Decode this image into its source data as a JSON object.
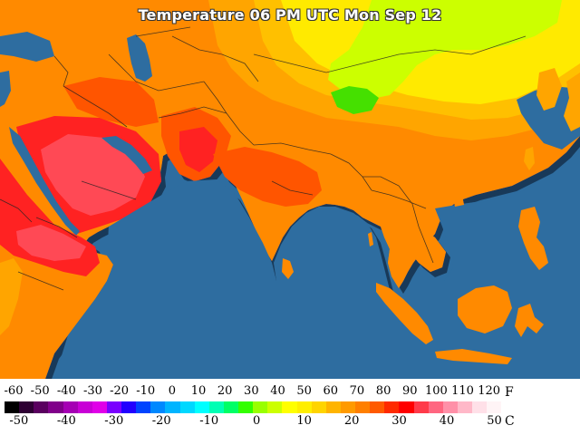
{
  "title": "Temperature 06 PM UTC Mon Sep 12",
  "legend": {
    "f_unit": "F",
    "c_unit": "C",
    "f_ticks": [
      "-60",
      "-50",
      "-40",
      "-30",
      "-20",
      "-10",
      "0",
      "10",
      "20",
      "30",
      "40",
      "50",
      "60",
      "70",
      "80",
      "90",
      "100",
      "110",
      "120"
    ],
    "c_ticks": [
      "-50",
      "-40",
      "-30",
      "-20",
      "-10",
      "0",
      "10",
      "20",
      "30",
      "40",
      "50"
    ],
    "colors": [
      "#000000",
      "#2e0033",
      "#5a005f",
      "#80008a",
      "#a500b4",
      "#c800d6",
      "#e000e8",
      "#7a00ff",
      "#2200ff",
      "#0044ff",
      "#0088ff",
      "#00b4ff",
      "#00d8ff",
      "#00ffff",
      "#00ffb4",
      "#00ff66",
      "#33ff00",
      "#99ff00",
      "#ccff00",
      "#ffff00",
      "#ffee00",
      "#ffd400",
      "#ffb400",
      "#ff9a00",
      "#ff7f00",
      "#ff5a00",
      "#ff2a00",
      "#ff0000",
      "#ff3a4a",
      "#ff6680",
      "#ff90a8",
      "#ffb8c8",
      "#ffe0e8",
      "#fff4f6"
    ]
  },
  "map_colors": {
    "ocean": "#2e6da0",
    "land_orange": "#ff8a00",
    "land_light_orange": "#ffa500",
    "land_yellow_orange": "#ffc000",
    "land_yellow": "#ffea00",
    "land_lime": "#ccff00",
    "land_green": "#44e000",
    "land_red_orange": "#ff5500",
    "land_red": "#ff2020",
    "land_pink": "#ff4a55"
  }
}
